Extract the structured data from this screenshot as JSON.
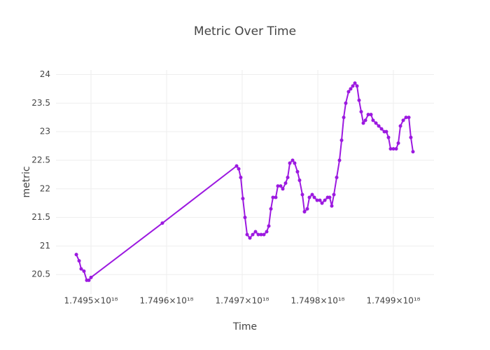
{
  "chart_data": {
    "type": "line",
    "title": "Metric Over Time",
    "x_label": "Time",
    "y_label": "metric",
    "color": "#9c19e0",
    "grid": true,
    "markers": true,
    "x": [
      1.7494806e+18,
      1.7494843e+18,
      1.749487e+18,
      1.7494907e+18,
      1.7494944e+18,
      1.7494972e+18,
      1.7495e+18,
      1.7495944e+18,
      1.7496926e+18,
      1.7496954e+18,
      1.7496981e+18,
      1.7497009e+18,
      1.7497037e+18,
      1.7497065e+18,
      1.7497102e+18,
      1.7497139e+18,
      1.7497176e+18,
      1.7497213e+18,
      1.749725e+18,
      1.7497287e+18,
      1.7497324e+18,
      1.7497352e+18,
      1.749738e+18,
      1.7497407e+18,
      1.7497444e+18,
      1.7497472e+18,
      1.7497509e+18,
      1.7497537e+18,
      1.7497574e+18,
      1.7497602e+18,
      1.749763e+18,
      1.7497667e+18,
      1.7497694e+18,
      1.7497731e+18,
      1.7497759e+18,
      1.7497796e+18,
      1.7497824e+18,
      1.7497861e+18,
      1.7497889e+18,
      1.7497926e+18,
      1.7497954e+18,
      1.7497991e+18,
      1.7498028e+18,
      1.7498056e+18,
      1.7498093e+18,
      1.749813e+18,
      1.7498157e+18,
      1.7498185e+18,
      1.7498213e+18,
      1.749825e+18,
      1.7498287e+18,
      1.7498315e+18,
      1.7498343e+18,
      1.749837e+18,
      1.7498407e+18,
      1.7498435e+18,
      1.7498463e+18,
      1.7498491e+18,
      1.7498519e+18,
      1.7498546e+18,
      1.7498574e+18,
      1.7498602e+18,
      1.749863e+18,
      1.7498667e+18,
      1.7498704e+18,
      1.7498731e+18,
      1.7498769e+18,
      1.7498806e+18,
      1.7498843e+18,
      1.749888e+18,
      1.7498907e+18,
      1.7498935e+18,
      1.7498963e+18,
      1.7499e+18,
      1.7499037e+18,
      1.7499065e+18,
      1.7499093e+18,
      1.749913e+18,
      1.7499167e+18,
      1.7499204e+18,
      1.7499231e+18,
      1.7499259e+18
    ],
    "values": [
      20.85,
      20.74,
      20.6,
      20.56,
      20.4,
      20.4,
      20.45,
      21.4,
      22.4,
      22.35,
      22.2,
      21.83,
      21.5,
      21.2,
      21.14,
      21.2,
      21.25,
      21.2,
      21.2,
      21.2,
      21.25,
      21.35,
      21.65,
      21.85,
      21.85,
      22.05,
      22.05,
      22.0,
      22.1,
      22.2,
      22.45,
      22.5,
      22.45,
      22.3,
      22.15,
      21.9,
      21.6,
      21.65,
      21.85,
      21.9,
      21.85,
      21.8,
      21.8,
      21.75,
      21.8,
      21.85,
      21.85,
      21.7,
      21.9,
      22.2,
      22.5,
      22.85,
      23.25,
      23.5,
      23.7,
      23.75,
      23.8,
      23.85,
      23.8,
      23.55,
      23.35,
      23.15,
      23.2,
      23.3,
      23.3,
      23.2,
      23.15,
      23.1,
      23.05,
      23.0,
      23.0,
      22.9,
      22.7,
      22.7,
      22.7,
      22.8,
      23.1,
      23.2,
      23.25,
      23.25,
      22.9,
      22.65
    ],
    "xlim": [
      1.7494537e+18,
      1.7499537e+18
    ],
    "xticks": [
      {
        "value": 1.7495e+18,
        "label": "1.7495×10¹⁸"
      },
      {
        "value": 1.7496e+18,
        "label": "1.7496×10¹⁸"
      },
      {
        "value": 1.7497e+18,
        "label": "1.7497×10¹⁸"
      },
      {
        "value": 1.7498e+18,
        "label": "1.7498×10¹⁸"
      },
      {
        "value": 1.7499e+18,
        "label": "1.7499×10¹⁸"
      }
    ],
    "ylim": [
      20.16,
      24.08
    ],
    "yticks": [
      20.5,
      21,
      21.5,
      22,
      22.5,
      23,
      23.5,
      24
    ]
  }
}
